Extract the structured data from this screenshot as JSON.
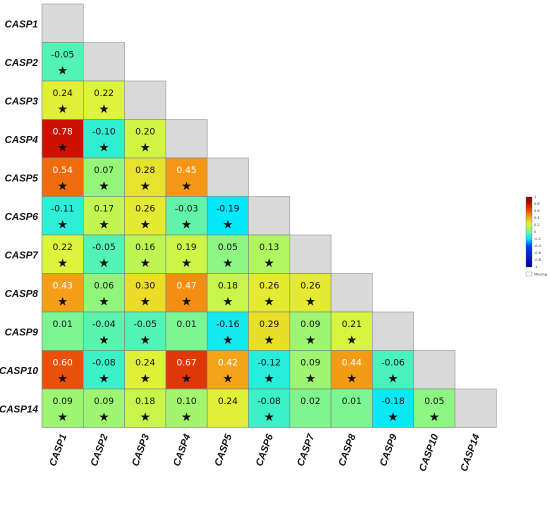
{
  "chart_data": {
    "type": "heatmap",
    "title": "",
    "labels": [
      "CASP1",
      "CASP2",
      "CASP3",
      "CASP4",
      "CASP5",
      "CASP6",
      "CASP7",
      "CASP8",
      "CASP9",
      "CASP10",
      "CASP14"
    ],
    "rows": [
      [],
      [
        -0.05
      ],
      [
        0.24,
        0.22
      ],
      [
        0.78,
        -0.1,
        0.2
      ],
      [
        0.54,
        0.07,
        0.28,
        0.45
      ],
      [
        -0.11,
        0.17,
        0.26,
        -0.03,
        -0.19
      ],
      [
        0.22,
        -0.05,
        0.16,
        0.19,
        0.05,
        0.13
      ],
      [
        0.43,
        0.06,
        0.3,
        0.47,
        0.18,
        0.26,
        0.26
      ],
      [
        0.01,
        -0.04,
        -0.05,
        0.01,
        -0.16,
        0.29,
        0.09,
        0.21
      ],
      [
        0.6,
        -0.08,
        0.24,
        0.67,
        0.42,
        -0.12,
        0.09,
        0.44,
        -0.06
      ],
      [
        0.09,
        0.09,
        0.18,
        0.1,
        0.24,
        -0.08,
        0.02,
        0.01,
        -0.18,
        0.05
      ]
    ],
    "significant": [
      [],
      [
        true
      ],
      [
        true,
        true
      ],
      [
        true,
        true,
        true
      ],
      [
        true,
        true,
        true,
        true
      ],
      [
        true,
        true,
        true,
        true,
        true
      ],
      [
        true,
        true,
        true,
        true,
        true,
        true
      ],
      [
        true,
        true,
        true,
        true,
        true,
        true,
        true
      ],
      [
        false,
        true,
        true,
        false,
        true,
        true,
        true,
        true
      ],
      [
        true,
        true,
        true,
        true,
        true,
        true,
        true,
        true,
        true
      ],
      [
        true,
        true,
        true,
        true,
        false,
        true,
        false,
        false,
        true,
        true
      ]
    ],
    "diagonal_color": "#d9d9d9",
    "legend": {
      "ticks": [
        "1",
        "0.8",
        "0.6",
        "0.4",
        "0.2",
        "0",
        "-0.2",
        "-0.4",
        "-0.6",
        "-0.8",
        "-1"
      ],
      "missing_label": "Missing",
      "placement": "right"
    }
  }
}
